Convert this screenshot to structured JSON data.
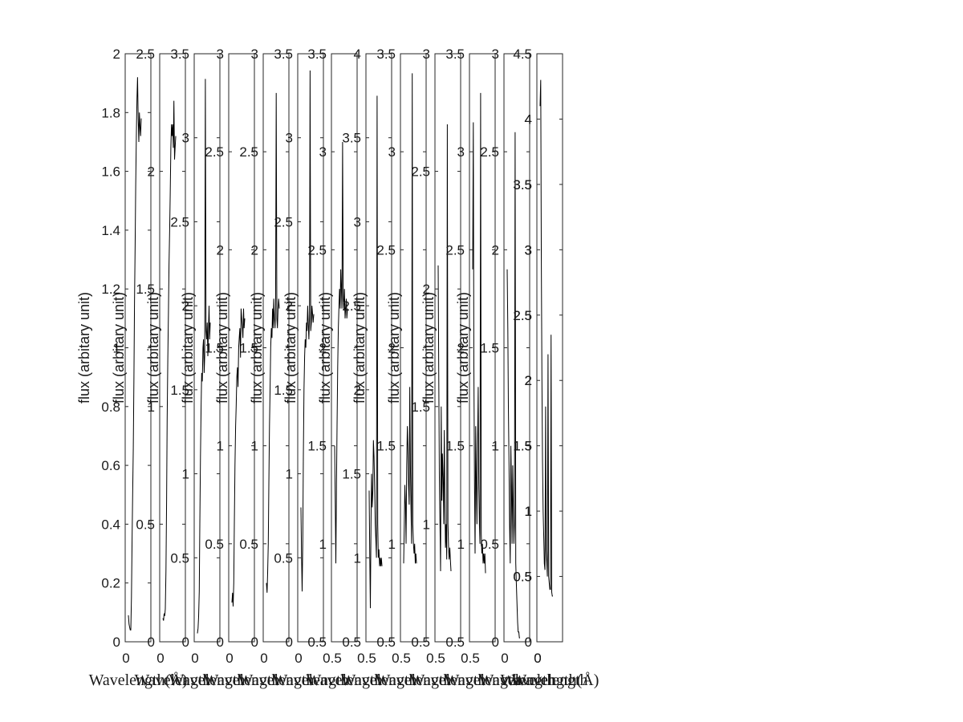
{
  "chart_data": [
    {
      "type": "line",
      "ylabel": "flux (arbitary unit)",
      "xlabel": "Wavelength",
      "xlabel_unit": "(Å)",
      "ylim": [
        0,
        2
      ],
      "yticks": [
        0,
        0.2,
        0.4,
        0.6,
        0.8,
        1,
        1.2,
        1.4,
        1.6,
        1.8,
        2
      ],
      "ytick_labels": [
        "0",
        "0.2",
        "0.4",
        "0.6",
        "0.8",
        "1",
        "1.2",
        "1.4",
        "1.6",
        "1.8",
        "2"
      ],
      "xtick_labels": [
        "0"
      ],
      "series": [
        {
          "values": [
            0.09,
            0.06,
            0.05,
            0.04,
            0.04,
            0.15,
            0.35,
            0.5,
            0.66,
            0.9,
            1.15,
            1.35,
            1.55,
            1.72,
            1.85,
            1.92,
            1.78,
            1.7,
            1.8,
            1.75,
            1.72,
            1.78
          ]
        }
      ]
    },
    {
      "type": "line",
      "ylabel": "flux (arbitary unit)",
      "xlabel": "Wavelength",
      "ylim": [
        0,
        2.5
      ],
      "yticks": [
        0,
        0.5,
        1,
        1.5,
        2,
        2.5
      ],
      "ytick_labels": [
        "0",
        "0.5",
        "1",
        "1.5",
        "2",
        "2.5"
      ],
      "xtick_labels": [
        "0"
      ],
      "series": [
        {
          "values": [
            0.1,
            0.09,
            0.12,
            0.11,
            0.14,
            0.3,
            0.6,
            0.95,
            1.2,
            1.4,
            1.6,
            1.75,
            1.9,
            2.1,
            2.2,
            2.15,
            2.2,
            2.1,
            2.3,
            2.05,
            2.1,
            2.15
          ]
        }
      ]
    },
    {
      "type": "line",
      "ylabel": "flux (arbitary unit)",
      "xlabel": "Wavelength",
      "ylim": [
        0,
        3.5
      ],
      "yticks": [
        0,
        0.5,
        1,
        1.5,
        2,
        2.5,
        3,
        3.5
      ],
      "ytick_labels": [
        "0",
        "0.5",
        "1",
        "1.5",
        "2",
        "2.5",
        "3",
        "3.5"
      ],
      "xtick_labels": [
        "0"
      ],
      "series": [
        {
          "values": [
            0.05,
            0.08,
            0.15,
            0.3,
            0.7,
            1.1,
            1.4,
            1.6,
            1.55,
            1.75,
            1.8,
            1.6,
            1.7,
            3.35,
            1.85,
            1.8,
            1.9,
            1.7,
            1.85,
            2.0,
            1.8,
            1.9
          ]
        }
      ]
    },
    {
      "type": "line",
      "ylabel": "flux (arbitary unit)",
      "xlabel": "Wavelength",
      "ylim": [
        0,
        3
      ],
      "yticks": [
        0,
        0.5,
        1,
        1.5,
        2,
        2.5,
        3
      ],
      "ytick_labels": [
        "0",
        "0.5",
        "1",
        "1.5",
        "2",
        "2.5",
        "3"
      ],
      "xtick_labels": [
        "0"
      ],
      "series": [
        {
          "values": [
            0.2,
            0.25,
            0.18,
            0.3,
            0.6,
            0.9,
            1.1,
            1.2,
            1.35,
            1.4,
            1.3,
            1.5,
            1.55,
            1.6,
            1.45,
            1.7,
            1.65,
            1.6,
            1.55,
            1.7,
            1.6,
            1.65
          ]
        }
      ]
    },
    {
      "type": "line",
      "ylabel": "flux (arbitary unit)",
      "xlabel": "Wavelength",
      "ylim": [
        0,
        3
      ],
      "yticks": [
        0,
        0.5,
        1,
        1.5,
        2,
        2.5,
        3
      ],
      "ytick_labels": [
        "0",
        "0.5",
        "1",
        "1.5",
        "2",
        "2.5",
        "3"
      ],
      "xtick_labels": [
        "0"
      ],
      "series": [
        {
          "values": [
            0.3,
            0.25,
            0.35,
            0.5,
            0.8,
            1.1,
            1.3,
            1.5,
            1.6,
            1.55,
            1.7,
            1.6,
            1.75,
            1.65,
            1.6,
            1.7,
            2.8,
            1.65,
            1.6,
            1.7,
            1.75,
            1.7
          ]
        }
      ]
    },
    {
      "type": "line",
      "ylabel": "flux (arbitary unit)",
      "xlabel": "Wavelength",
      "ylim": [
        0,
        3.5
      ],
      "yticks": [
        0,
        0.5,
        1,
        1.5,
        2,
        2.5,
        3,
        3.5
      ],
      "ytick_labels": [
        "0",
        "0.5",
        "1",
        "1.5",
        "2",
        "2.5",
        "3",
        "3.5"
      ],
      "xtick_labels": [
        "0"
      ],
      "series": [
        {
          "values": [
            0.8,
            0.5,
            0.3,
            0.6,
            1.1,
            1.5,
            1.7,
            1.8,
            1.75,
            1.9,
            1.85,
            2.0,
            1.9,
            1.8,
            1.95,
            3.4,
            1.85,
            1.9,
            2.0,
            1.95,
            1.9,
            1.95
          ]
        }
      ]
    },
    {
      "type": "line",
      "ylabel": "flux (arbitary unit)",
      "xlabel": "Wavelength",
      "ylim": [
        0.5,
        3.5
      ],
      "yticks": [
        0.5,
        1,
        1.5,
        2,
        2.5,
        3,
        3.5
      ],
      "ytick_labels": [
        "0.5",
        "1",
        "1.5",
        "2",
        "2.5",
        "3",
        "3.5"
      ],
      "xtick_labels": [
        "0.5"
      ],
      "series": [
        {
          "values": [
            1.5,
            1.2,
            0.9,
            1.3,
            1.6,
            1.9,
            2.1,
            2.2,
            2.3,
            2.2,
            2.4,
            2.3,
            2.2,
            3.05,
            2.25,
            2.2,
            2.3,
            2.15,
            2.2,
            2.25,
            2.15,
            2.2
          ]
        }
      ]
    },
    {
      "type": "line",
      "ylabel": "flux (arbitary unit)",
      "xlabel": "Wavelength",
      "ylim": [
        0.5,
        4
      ],
      "yticks": [
        0.5,
        1,
        1.5,
        2,
        2.5,
        3,
        3.5,
        4
      ],
      "ytick_labels": [
        "0.5",
        "1",
        "1.5",
        "2",
        "2.5",
        "3",
        "3.5",
        "4"
      ],
      "xtick_labels": [
        "0.5"
      ],
      "series": [
        {
          "values": [
            1.4,
            1.0,
            0.7,
            1.2,
            1.5,
            1.3,
            1.4,
            1.7,
            1.6,
            1.4,
            1.2,
            1.1,
            1.0,
            3.75,
            1.2,
            1.0,
            1.05,
            0.95,
            1.0,
            0.95,
            1.0,
            0.95
          ]
        }
      ]
    },
    {
      "type": "line",
      "ylabel": "flux (arbitary unit)",
      "xlabel": "Wavelength",
      "ylim": [
        0.5,
        3.5
      ],
      "yticks": [
        0.5,
        1,
        1.5,
        2,
        2.5,
        3,
        3.5
      ],
      "ytick_labels": [
        "0.5",
        "1",
        "1.5",
        "2",
        "2.5",
        "3",
        "3.5"
      ],
      "xtick_labels": [
        "0.5"
      ],
      "series": [
        {
          "values": [
            0.9,
            1.1,
            1.3,
            1.2,
            1.0,
            1.4,
            1.6,
            1.5,
            1.3,
            1.2,
            1.8,
            1.4,
            1.2,
            1.0,
            3.4,
            1.1,
            1.0,
            0.95,
            1.0,
            0.9,
            0.95,
            0.9
          ]
        }
      ]
    },
    {
      "type": "line",
      "ylabel": "flux (arbitary unit)",
      "xlabel": "Wavelength",
      "ylim": [
        0.5,
        3
      ],
      "yticks": [
        0.5,
        1,
        1.5,
        2,
        2.5,
        3
      ],
      "ytick_labels": [
        "0.5",
        "1",
        "1.5",
        "2",
        "2.5",
        "3"
      ],
      "xtick_labels": [
        "0.5"
      ],
      "series": [
        {
          "values": [
            2.1,
            1.6,
            1.2,
            1.0,
            0.8,
            1.5,
            1.1,
            1.3,
            1.2,
            1.0,
            1.4,
            1.1,
            0.9,
            1.0,
            0.85,
            2.7,
            1.0,
            0.9,
            0.85,
            0.9,
            0.85,
            0.8
          ]
        }
      ]
    },
    {
      "type": "line",
      "ylabel": "flux (arbitary unit)",
      "xlabel": "Wavelength",
      "ylim": [
        0.5,
        3.5
      ],
      "yticks": [
        0.5,
        1,
        1.5,
        2,
        2.5,
        3,
        3.5
      ],
      "ytick_labels": [
        "0.5",
        "1",
        "1.5",
        "2",
        "2.5",
        "3",
        "3.5"
      ],
      "xtick_labels": [
        "0.5"
      ],
      "series": [
        {
          "values": [
            2.4,
            3.15,
            1.9,
            1.3,
            0.95,
            1.6,
            1.3,
            1.1,
            1.5,
            1.8,
            1.3,
            1.1,
            1.0,
            3.3,
            1.05,
            0.95,
            1.0,
            0.9,
            0.95,
            0.9,
            0.95,
            0.85
          ]
        }
      ]
    },
    {
      "type": "line",
      "ylabel": "flux (arbitary unit)",
      "xlabel": "Wavelength",
      "ylim": [
        0,
        3
      ],
      "yticks": [
        0,
        0.5,
        1,
        1.5,
        2,
        2.5,
        3
      ],
      "ytick_labels": [
        "0",
        "0.5",
        "1",
        "1.5",
        "2",
        "2.5",
        "3"
      ],
      "xtick_labels": [
        "0"
      ],
      "series": [
        {
          "values": [
            1.9,
            1.6,
            1.2,
            0.9,
            0.6,
            0.4,
            1.0,
            0.8,
            0.5,
            0.9,
            0.7,
            0.5,
            0.6,
            2.6,
            0.4,
            0.3,
            0.2,
            0.1,
            0.05,
            0.05,
            0.02,
            0.02
          ]
        }
      ]
    },
    {
      "type": "line",
      "ylabel": "",
      "xlabel": "Wavelength",
      "ylim": [
        0,
        4.5
      ],
      "yticks": [
        0,
        0.5,
        1,
        1.5,
        2,
        2.5,
        3,
        3.5,
        4,
        4.5
      ],
      "ytick_labels": [
        "0",
        "0.5",
        "1",
        "1.5",
        "2",
        "2.5",
        "3",
        "3.5",
        "4",
        "4.5"
      ],
      "xtick_labels": [
        "0"
      ],
      "series": [
        {
          "values": [
            4.3,
            3.5,
            2.8,
            2.0,
            1.5,
            1.3,
            3.3,
            2.0,
            1.6,
            1.3,
            1.2,
            1.1,
            1.0,
            3.8,
            1.1,
            0.9,
            0.85,
            0.8,
            0.75,
            0.7,
            0.72,
            0.7
          ]
        }
      ]
    },
    {
      "type": "line",
      "ylabel": "",
      "xlabel": "Wavelength",
      "xlabel_unit": "(Å)",
      "ylim": [
        0,
        4.5
      ],
      "yticks": [
        0,
        0.5,
        1,
        1.5,
        2,
        2.5,
        3,
        3.5,
        4,
        4.5
      ],
      "ytick_labels": [
        "0.5",
        "1",
        "1.5",
        "2",
        "2.5",
        "3",
        "3.5",
        "4"
      ],
      "ytick_label_values": [
        0.5,
        1,
        1.5,
        2,
        2.5,
        3,
        3.5,
        4
      ],
      "xtick_labels": [
        "0"
      ],
      "series": [
        {
          "values": [
            4.1,
            4.3,
            3.0,
            2.0,
            1.4,
            1.0,
            0.8,
            0.6,
            0.55,
            1.8,
            0.7,
            0.6,
            0.5,
            2.2,
            0.5,
            0.45,
            0.4,
            0.4,
            2.35,
            0.38,
            0.35,
            0.35
          ]
        }
      ]
    }
  ]
}
